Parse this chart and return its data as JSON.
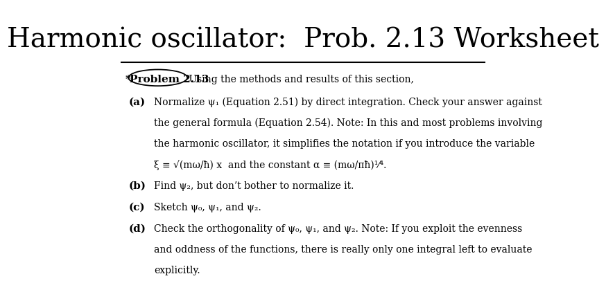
{
  "title": "Harmonic oscillator:  Prob. 2.13 Worksheet",
  "title_fontsize": 28,
  "bg_color": "#ffffff",
  "text_color": "#000000",
  "items": [
    {
      "label": "(a)",
      "lines": [
        "Normalize ψ₁ (Equation 2.51) by direct integration. Check your answer against",
        "the general formula (Equation 2.54). Note: In this and most problems involving",
        "the harmonic oscillator, it simplifies the notation if you introduce the variable",
        "ξ ≡ √(mω/ħ) x  and the constant α ≡ (mω/πħ)¹⁄⁴."
      ]
    },
    {
      "label": "(b)",
      "lines": [
        "Find ψ₂, but don’t bother to normalize it."
      ]
    },
    {
      "label": "(c)",
      "lines": [
        "Sketch ψ₀, ψ₁, and ψ₂."
      ]
    },
    {
      "label": "(d)",
      "lines": [
        "Check the orthogonality of ψ₀, ψ₁, and ψ₂. Note: If you exploit the evenness",
        "and oddness of the functions, there is really only one integral left to evaluate",
        "explicitly."
      ]
    }
  ]
}
